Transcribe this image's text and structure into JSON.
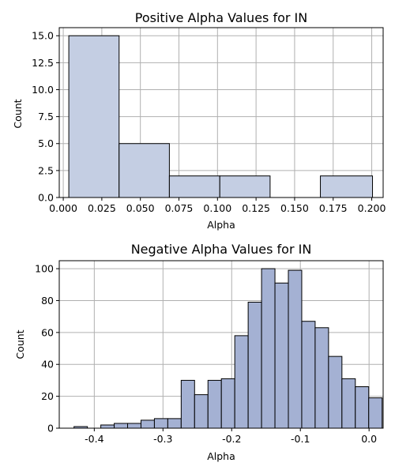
{
  "chart_data": [
    {
      "type": "bar",
      "title": "Positive Alpha Values for IN",
      "xlabel": "Alpha",
      "ylabel": "Count",
      "xlim": [
        -0.0026,
        0.2074
      ],
      "ylim": [
        0,
        15.75
      ],
      "grid": true,
      "bar_color": "#c4cee3",
      "edge_color": "#000000",
      "xticks": [
        "0.000",
        "0.025",
        "0.050",
        "0.075",
        "0.100",
        "0.125",
        "0.150",
        "0.175",
        "0.200"
      ],
      "yticks": [
        "0.0",
        "2.5",
        "5.0",
        "7.5",
        "10.0",
        "12.5",
        "15.0"
      ],
      "bins": [
        {
          "x0": 0.0036,
          "x1": 0.0362,
          "count": 15
        },
        {
          "x0": 0.0362,
          "x1": 0.0688,
          "count": 5
        },
        {
          "x0": 0.0688,
          "x1": 0.1015,
          "count": 2
        },
        {
          "x0": 0.1015,
          "x1": 0.1341,
          "count": 2
        },
        {
          "x0": 0.1341,
          "x1": 0.1667,
          "count": 0
        },
        {
          "x0": 0.1667,
          "x1": 0.2005,
          "count": 2
        }
      ]
    },
    {
      "type": "bar",
      "title": "Negative Alpha Values for IN",
      "xlabel": "Alpha",
      "ylabel": "Count",
      "xlim": [
        -0.451,
        0.0205
      ],
      "ylim": [
        0,
        105
      ],
      "grid": true,
      "bar_color": "#a4b1d3",
      "edge_color": "#000000",
      "xticks": [
        "-0.4",
        "-0.3",
        "-0.2",
        "-0.1",
        "0.0"
      ],
      "yticks": [
        "0",
        "20",
        "40",
        "60",
        "80",
        "100"
      ],
      "bin_start": -0.4295,
      "bin_width": 0.0195,
      "counts": [
        1,
        0,
        2,
        3,
        3,
        5,
        6,
        6,
        30,
        21,
        30,
        31,
        58,
        79,
        100,
        91,
        99,
        67,
        63,
        45,
        31,
        26,
        19
      ]
    }
  ]
}
